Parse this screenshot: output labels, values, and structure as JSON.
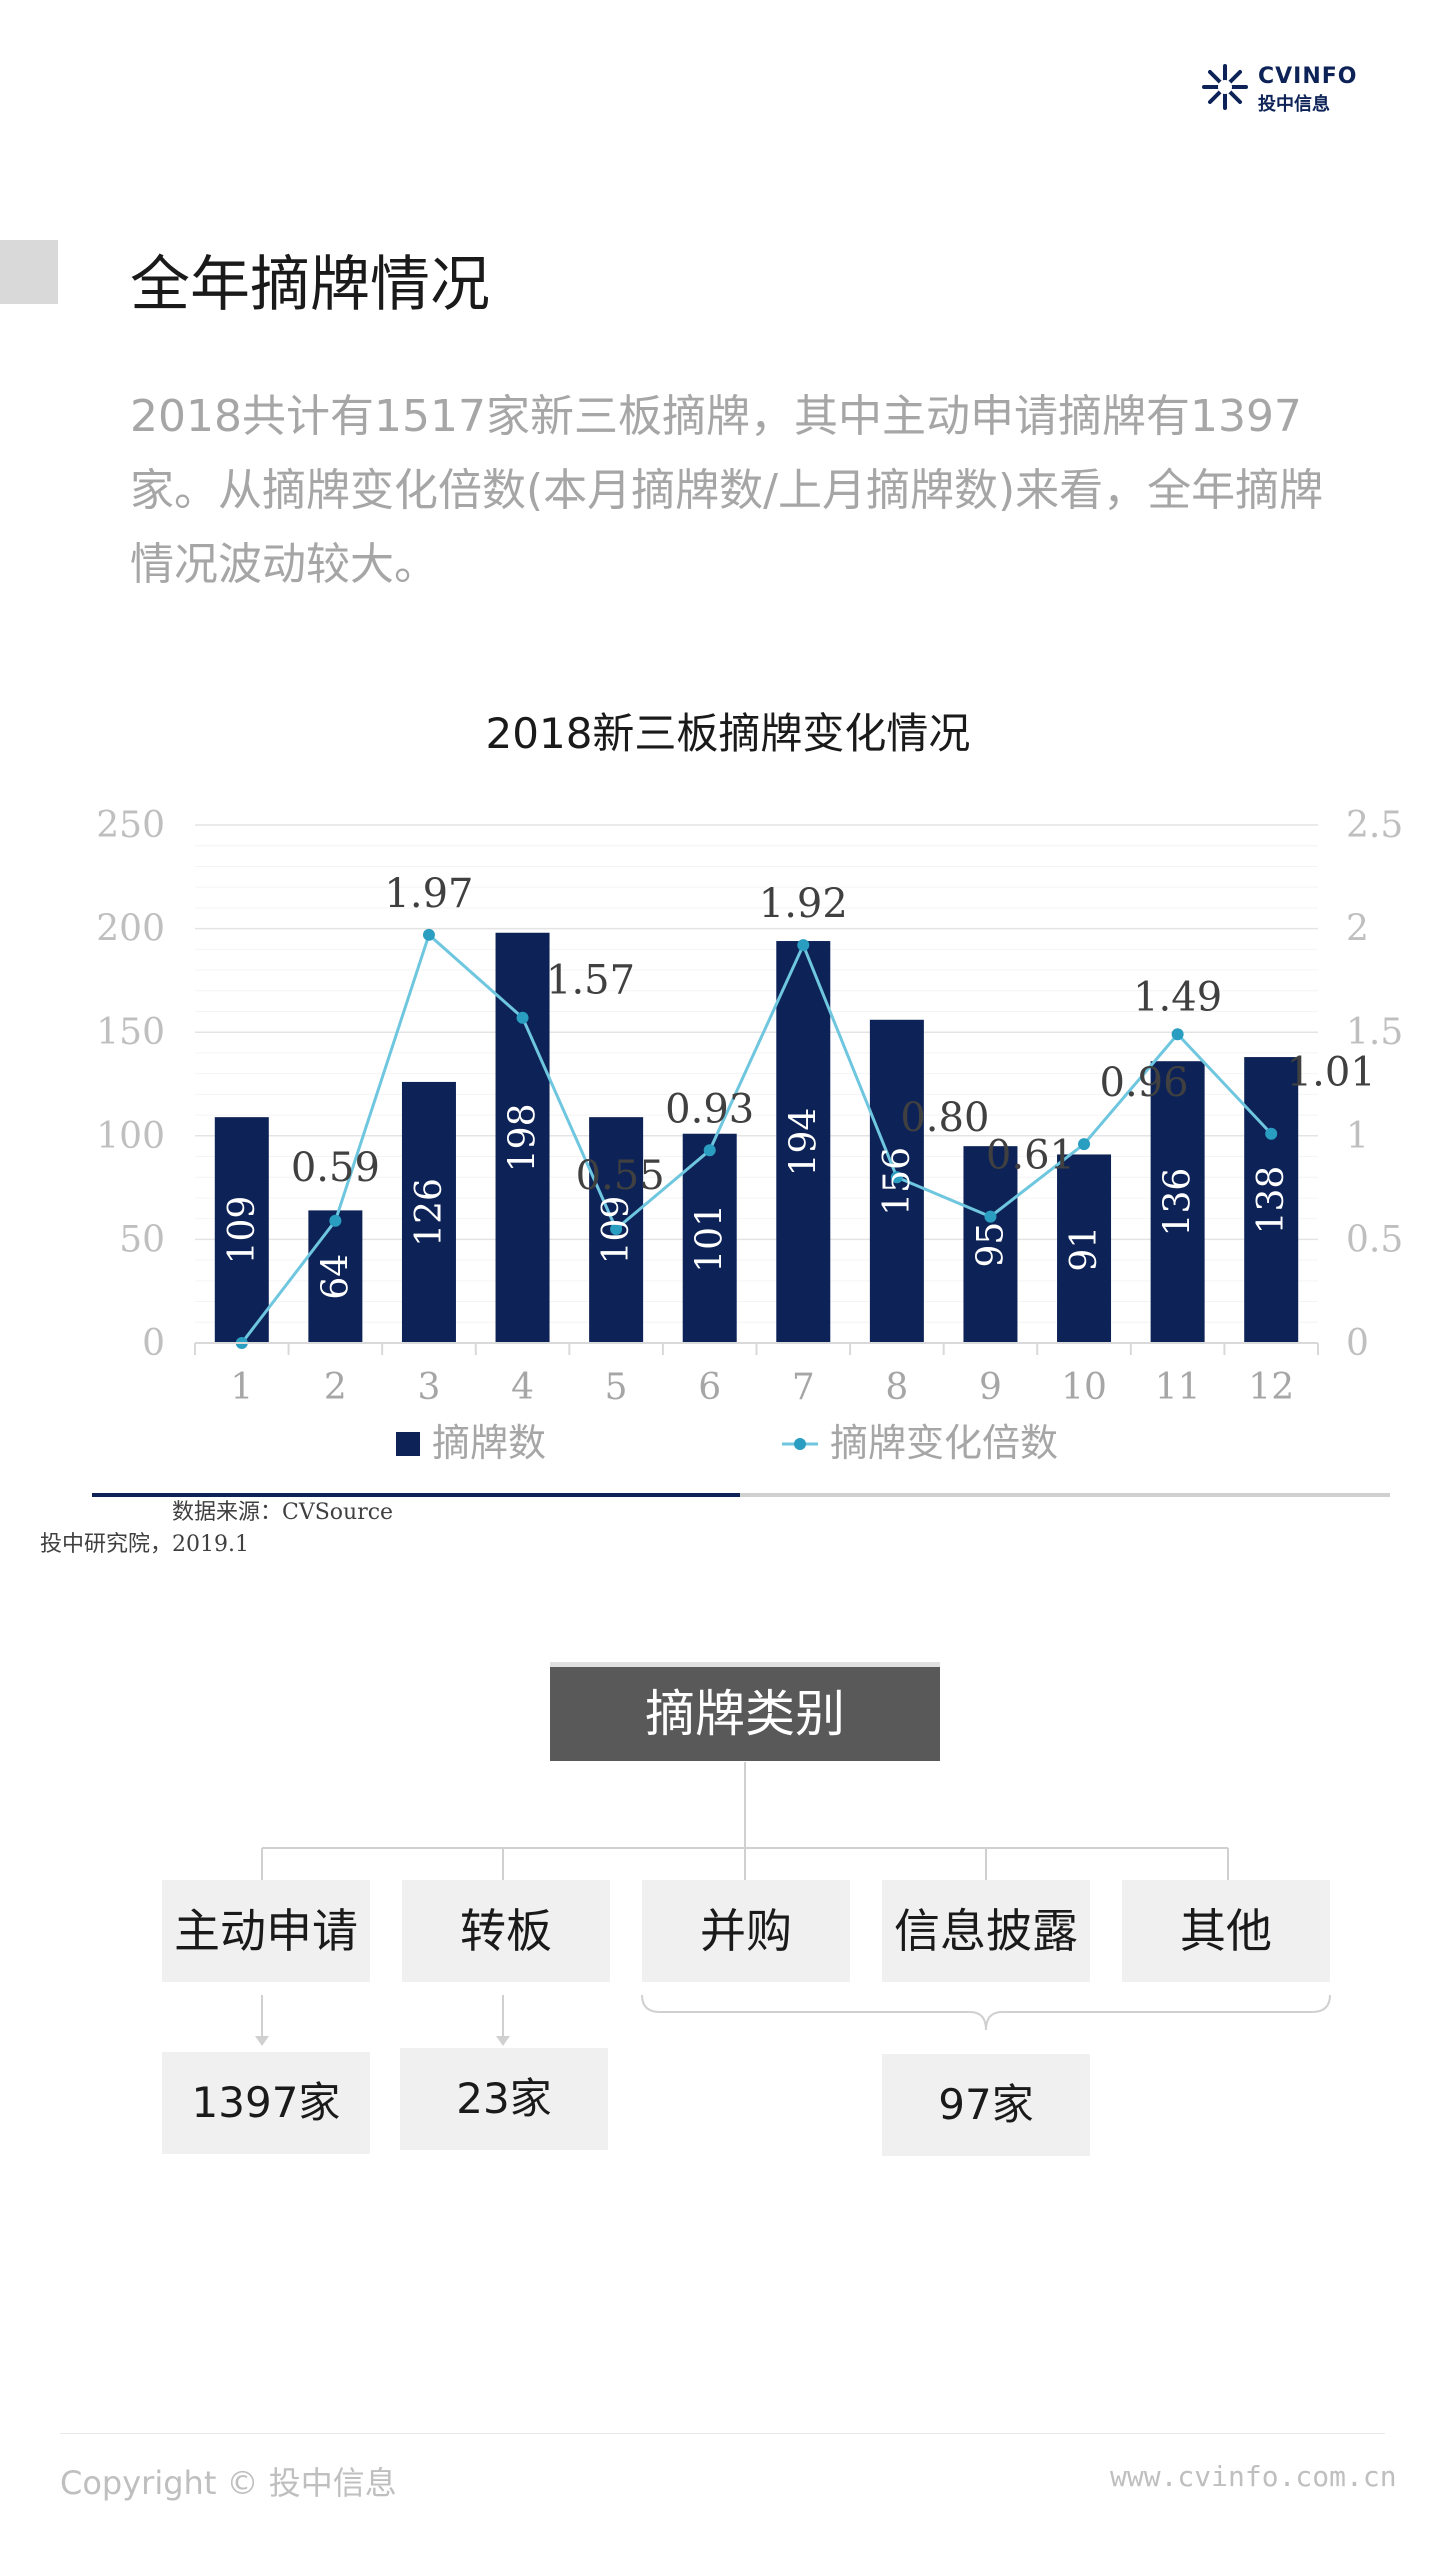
{
  "brand": {
    "name_en": "CVINFO",
    "name_cn": "投中信息",
    "color": "#0d2357"
  },
  "page_title": "全年摘牌情况",
  "intro": "2018共计有1517家新三板摘牌，其中主动申请摘牌有1397家。从摘牌变化倍数(本月摘牌数/上月摘牌数)来看，全年摘牌情况波动较大。",
  "chart_data": {
    "type": "bar",
    "title": "2018新三板摘牌变化情况",
    "categories": [
      "1",
      "2",
      "3",
      "4",
      "5",
      "6",
      "7",
      "8",
      "9",
      "10",
      "11",
      "12"
    ],
    "series": [
      {
        "name": "摘牌数",
        "type": "bar",
        "axis": "left",
        "color": "#0d2357",
        "values": [
          109,
          64,
          126,
          198,
          109,
          101,
          194,
          156,
          95,
          91,
          136,
          138
        ],
        "labels": [
          "109",
          "64",
          "126",
          "198",
          "109",
          "101",
          "194",
          "156",
          "95",
          "91",
          "136",
          "138"
        ]
      },
      {
        "name": "摘牌变化倍数",
        "type": "line",
        "axis": "right",
        "color": "#6ec6df",
        "values": [
          0,
          0.59,
          1.97,
          1.57,
          0.55,
          0.93,
          1.92,
          0.8,
          0.61,
          0.96,
          1.49,
          1.01
        ],
        "labels": [
          "",
          "0.59",
          "1.97",
          "1.57",
          "0.55",
          "0.93",
          "1.92",
          "0.80",
          "0.61",
          "0.96",
          "1.49",
          "1.01"
        ]
      }
    ],
    "y_left": {
      "min": 0,
      "max": 250,
      "ticks": [
        "0",
        "50",
        "100",
        "150",
        "200",
        "250"
      ]
    },
    "y_right": {
      "min": 0,
      "max": 2.5,
      "ticks": [
        "0",
        "0.5",
        "1",
        "1.5",
        "2",
        "2.5"
      ]
    },
    "grid": true,
    "legend_position": "bottom"
  },
  "source": {
    "line1": "数据来源：CVSource",
    "line2": "投中研究院，2019.1"
  },
  "category_chart": {
    "root": "摘牌类别",
    "categories": [
      "主动申请",
      "转板",
      "并购",
      "信息披露",
      "其他"
    ],
    "accent_colors": [
      "#0d2357",
      "#1a7aa6",
      "#2a9ec0",
      "#8fd0e3",
      "#0d2357"
    ],
    "counts": {
      "active": "1397家",
      "transfer": "23家",
      "others": "97家"
    }
  },
  "footer": {
    "copyright": "Copyright © 投中信息",
    "website": "www.cvinfo.com.cn"
  }
}
